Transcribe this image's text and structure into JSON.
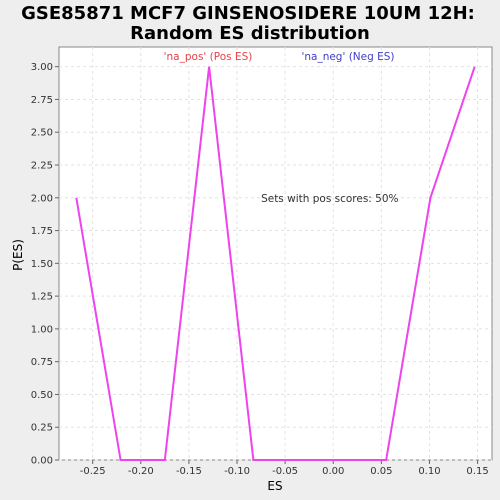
{
  "chart_data": {
    "type": "line",
    "title_line1": "GSE85871 MCF7 GINSENOSIDERE 10UM 12H:",
    "title_line2": "Random ES distribution",
    "xlabel": "ES",
    "ylabel": "P(ES)",
    "xlim": [
      -0.285,
      0.165
    ],
    "ylim": [
      0,
      3.15
    ],
    "xticks": [
      -0.25,
      -0.2,
      -0.15,
      -0.1,
      -0.05,
      0.0,
      0.05,
      0.1,
      0.15
    ],
    "xtick_labels": [
      "-0.25",
      "-0.20",
      "-0.15",
      "-0.10",
      "-0.05",
      "0.00",
      "0.05",
      "0.10",
      "0.15"
    ],
    "yticks": [
      0.0,
      0.25,
      0.5,
      0.75,
      1.0,
      1.25,
      1.5,
      1.75,
      2.0,
      2.25,
      2.5,
      2.75,
      3.0
    ],
    "ytick_labels": [
      "0.00",
      "0.25",
      "0.50",
      "0.75",
      "1.00",
      "1.25",
      "1.50",
      "1.75",
      "2.00",
      "2.25",
      "2.50",
      "2.75",
      "3.00"
    ],
    "grid": true,
    "legend": [
      {
        "label": "'na_pos' (Pos ES)",
        "color": "#e8414a"
      },
      {
        "label": "'na_neg' (Neg ES)",
        "color": "#4040c8"
      }
    ],
    "annotation": {
      "text": "Sets with pos scores: 50%",
      "x": -0.075,
      "y": 2.0
    },
    "series": [
      {
        "color": "#ee44ee",
        "x": [
          -0.267,
          -0.221,
          -0.175,
          -0.129,
          -0.083,
          0.055,
          0.101,
          0.147
        ],
        "y": [
          2.0,
          0.0,
          0.0,
          3.0,
          0.0,
          0.0,
          2.0,
          3.0
        ]
      }
    ]
  }
}
